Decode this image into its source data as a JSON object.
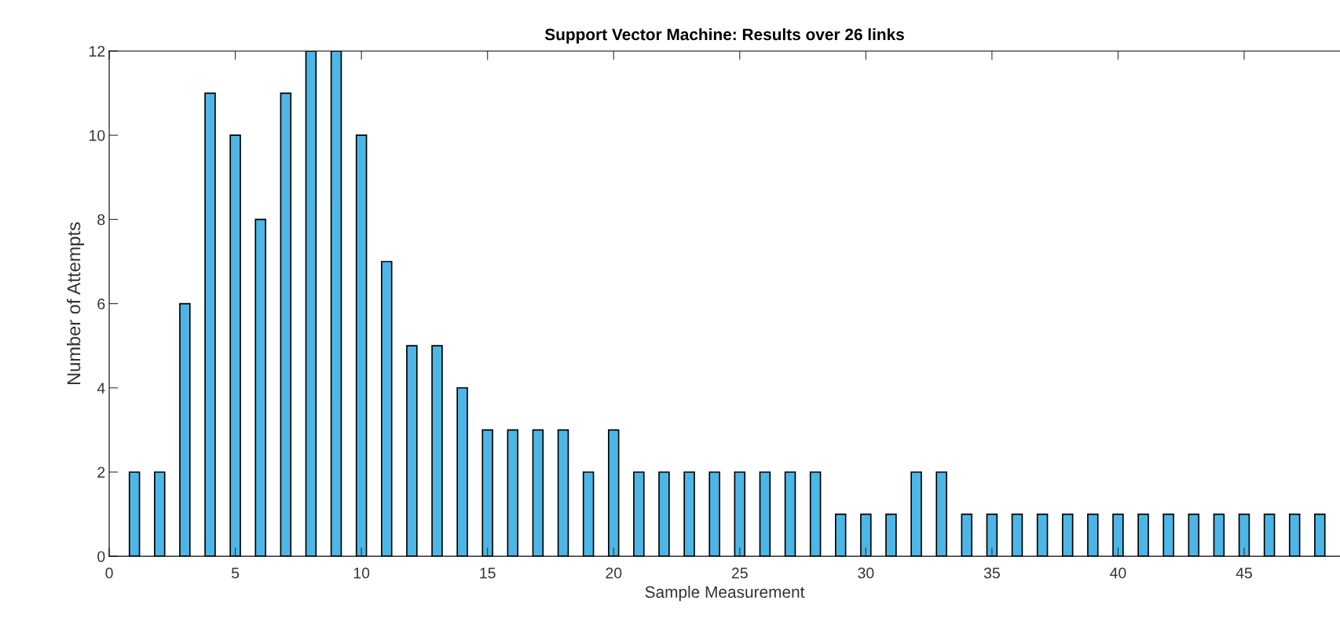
{
  "chart_data": {
    "type": "bar",
    "title": "Support Vector Machine: Results over 26 links",
    "xlabel": "Sample Measurement",
    "ylabel": "Number of Attempts",
    "x": [
      1,
      2,
      3,
      4,
      5,
      6,
      7,
      8,
      9,
      10,
      11,
      12,
      13,
      14,
      15,
      16,
      17,
      18,
      19,
      20,
      21,
      22,
      23,
      24,
      25,
      26,
      27,
      28,
      29,
      30,
      31,
      32,
      33,
      34,
      35,
      36,
      37,
      38,
      39,
      40,
      41,
      42,
      43,
      44,
      45,
      46,
      47,
      48
    ],
    "values": [
      2,
      2,
      6,
      11,
      10,
      8,
      11,
      12,
      12,
      10,
      7,
      5,
      5,
      4,
      3,
      3,
      3,
      3,
      2,
      3,
      2,
      2,
      2,
      2,
      2,
      2,
      2,
      2,
      1,
      1,
      1,
      2,
      2,
      1,
      1,
      1,
      1,
      1,
      1,
      1,
      1,
      1,
      1,
      1,
      1,
      1,
      1,
      1
    ],
    "color": "#4db6e6",
    "xlim": [
      0,
      48.8
    ],
    "xticks": [
      0,
      5,
      10,
      15,
      20,
      25,
      30,
      35,
      40,
      45
    ],
    "ylim": [
      0,
      12
    ],
    "yticks": [
      0,
      2,
      4,
      6,
      8,
      10,
      12
    ],
    "grid": false
  }
}
